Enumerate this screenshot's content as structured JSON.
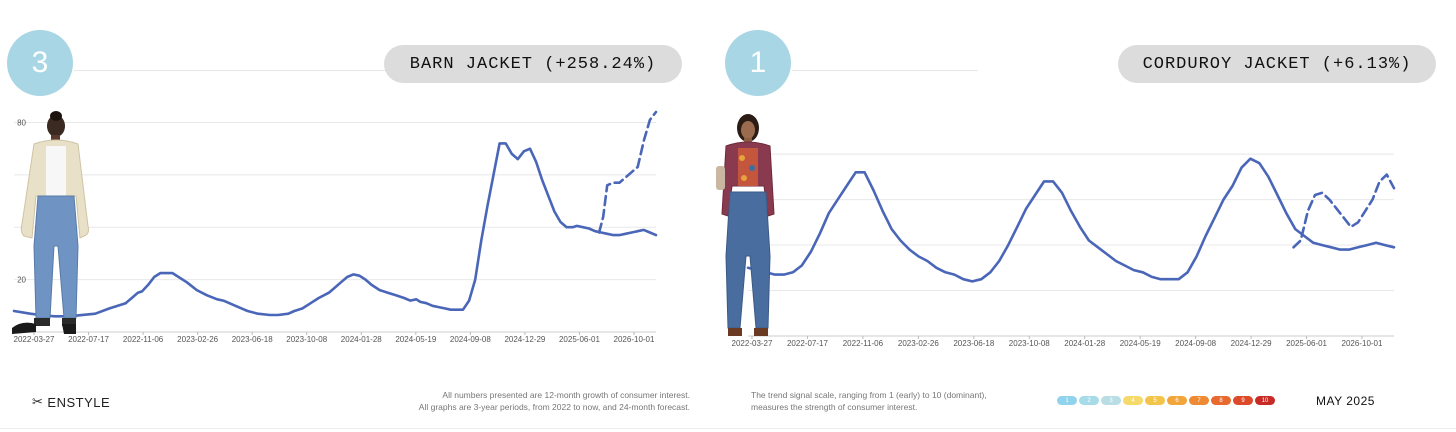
{
  "colors": {
    "accent": "#a9d6e5",
    "line": "#4a66b8",
    "grid": "#e8e8e8",
    "pill": "#dcdcdc"
  },
  "chart_data": [
    {
      "type": "line",
      "rank": "3",
      "title": "BARN JACKET (+258.24%)",
      "x_tick_labels": [
        "2022-03-27",
        "2022-07-17",
        "2022-11-06",
        "2023-02-26",
        "2023-06-18",
        "2023-10-08",
        "2024-01-28",
        "2024-05-19",
        "2024-09-08",
        "2024-12-29",
        "2025-06-01",
        "2026-10-01"
      ],
      "y_tick_labels": [
        "20",
        "",
        "",
        "80"
      ],
      "y_ticks": [
        20,
        40,
        60,
        80
      ],
      "ylim": [
        0,
        84
      ],
      "grid": true,
      "series": [
        {
          "style": "solid",
          "x": [
            0,
            0.08,
            0.13,
            0.2,
            0.27,
            0.4,
            0.47,
            0.55,
            0.58,
            0.61,
            0.63,
            0.66,
            0.69,
            0.72,
            0.78,
            0.85,
            0.9,
            0.95,
            1.0,
            1.03,
            1.06,
            1.09,
            1.12,
            1.15,
            1.2,
            1.26,
            1.3,
            1.35,
            1.38,
            1.42,
            1.46,
            1.5,
            1.55,
            1.58,
            1.61,
            1.64,
            1.67,
            1.7,
            1.73,
            1.76,
            1.8,
            1.84,
            1.88,
            1.92,
            1.95,
            1.98,
            2.0,
            2.03,
            2.06,
            2.09,
            2.12,
            2.15,
            2.18,
            2.21,
            2.24,
            2.27,
            2.3,
            2.33,
            2.36,
            2.39,
            2.42,
            2.45,
            2.48,
            2.51,
            2.54,
            2.57,
            2.6,
            2.63,
            2.66,
            2.69,
            2.72,
            2.75,
            2.77,
            2.8,
            2.83,
            2.86,
            2.89,
            2.92,
            2.95,
            2.98,
            3.01,
            3.04,
            3.07,
            3.1,
            3.13,
            3.16
          ],
          "y": [
            8,
            7,
            6.5,
            6,
            6,
            7,
            9,
            11,
            13,
            15,
            15.5,
            18,
            21,
            22.5,
            22.5,
            19,
            16,
            14,
            12.5,
            12,
            11,
            10,
            9,
            8,
            7,
            6.5,
            6.5,
            7,
            8,
            9,
            11,
            13,
            15,
            17,
            19,
            21,
            22,
            21.5,
            20,
            18,
            16,
            15,
            14,
            13,
            12,
            12.5,
            11.5,
            11,
            10,
            9.5,
            9,
            8.5,
            8.5,
            8.5,
            12,
            20,
            35,
            48,
            60,
            72,
            72,
            68,
            66,
            69,
            70,
            65,
            58,
            52,
            46,
            42,
            40,
            40,
            40.5,
            40,
            39.5,
            38.5,
            38,
            37.5,
            37,
            37,
            37.5,
            38,
            38.5,
            39,
            38,
            37
          ]
        },
        {
          "style": "dashed",
          "x": [
            2.88,
            2.9,
            2.92,
            2.95,
            2.98,
            3.01,
            3.04,
            3.07,
            3.1,
            3.13,
            3.15,
            3.16
          ],
          "y": [
            38,
            44,
            56,
            57,
            57,
            59,
            61,
            63,
            73,
            81,
            83,
            84
          ]
        }
      ]
    },
    {
      "type": "line",
      "rank": "1",
      "title": "CORDUROY JACKET (+6.13%)",
      "x_tick_labels": [
        "2022-03-27",
        "2022-07-17",
        "2022-11-06",
        "2023-02-26",
        "2023-06-18",
        "2023-10-08",
        "2024-01-28",
        "2024-05-19",
        "2024-09-08",
        "2024-12-29",
        "2025-06-01",
        "2026-10-01"
      ],
      "y_tick_labels": [],
      "y_ticks": [
        20,
        40,
        60,
        80
      ],
      "ylim": [
        0,
        95
      ],
      "grid": true,
      "series": [
        {
          "style": "solid",
          "x": [
            0,
            0.05,
            0.1,
            0.15,
            0.2,
            0.25,
            0.3,
            0.35,
            0.4,
            0.45,
            0.5,
            0.55,
            0.6,
            0.65,
            0.7,
            0.75,
            0.8,
            0.85,
            0.9,
            0.95,
            1.0,
            1.05,
            1.1,
            1.15,
            1.2,
            1.25,
            1.3,
            1.35,
            1.4,
            1.45,
            1.5,
            1.55,
            1.6,
            1.65,
            1.7,
            1.75,
            1.8,
            1.85,
            1.9,
            1.95,
            2.0,
            2.05,
            2.1,
            2.15,
            2.2,
            2.25,
            2.3,
            2.35,
            2.4,
            2.45,
            2.5,
            2.55,
            2.6,
            2.65,
            2.7,
            2.75,
            2.8,
            2.85,
            2.9,
            2.95,
            3.0,
            3.05,
            3.1,
            3.15,
            3.2,
            3.25,
            3.3,
            3.35,
            3.4,
            3.45,
            3.5,
            3.55,
            3.6
          ],
          "y": [
            30,
            29,
            28,
            27,
            27,
            28,
            31,
            37,
            45,
            54,
            60,
            66,
            72,
            72,
            64,
            55,
            47,
            42,
            38,
            35,
            33,
            30,
            28,
            27,
            25,
            24,
            25,
            28,
            33,
            40,
            48,
            56,
            62,
            68,
            68,
            63,
            55,
            48,
            42,
            39,
            36,
            33,
            31,
            29,
            28,
            26,
            25,
            25,
            25,
            28,
            35,
            44,
            52,
            60,
            66,
            74,
            78,
            76,
            70,
            62,
            54,
            47,
            44,
            41,
            40,
            39,
            38,
            38,
            39,
            40,
            41,
            40,
            39
          ]
        },
        {
          "style": "dashed",
          "x": [
            3.04,
            3.08,
            3.12,
            3.16,
            3.2,
            3.24,
            3.28,
            3.32,
            3.36,
            3.4,
            3.44,
            3.48,
            3.52,
            3.56,
            3.6
          ],
          "y": [
            39,
            42,
            55,
            62,
            63,
            60,
            56,
            52,
            48,
            50,
            55,
            60,
            68,
            71,
            65
          ]
        }
      ]
    }
  ],
  "footer": {
    "logo_text": "ENSTYLE",
    "note_left_line1": "All numbers presented are 12-month growth of consumer interest.",
    "note_left_line2": "All graphs are 3-year periods, from 2022 to now, and 24-month forecast.",
    "note_right_line1": "The trend signal scale, ranging from 1 (early) to 10 (dominant),",
    "note_right_line2": "measures the strength of consumer interest.",
    "scale": [
      {
        "label": "1",
        "color": "#8fd3ec"
      },
      {
        "label": "2",
        "color": "#a7dbe8"
      },
      {
        "label": "3",
        "color": "#b9dde4"
      },
      {
        "label": "4",
        "color": "#f5d96b"
      },
      {
        "label": "5",
        "color": "#f3c44a"
      },
      {
        "label": "6",
        "color": "#f2a53a"
      },
      {
        "label": "7",
        "color": "#ee8a34"
      },
      {
        "label": "8",
        "color": "#e8692e"
      },
      {
        "label": "9",
        "color": "#dd4a2a"
      },
      {
        "label": "10",
        "color": "#c82a26"
      }
    ],
    "date": "MAY 2025"
  }
}
